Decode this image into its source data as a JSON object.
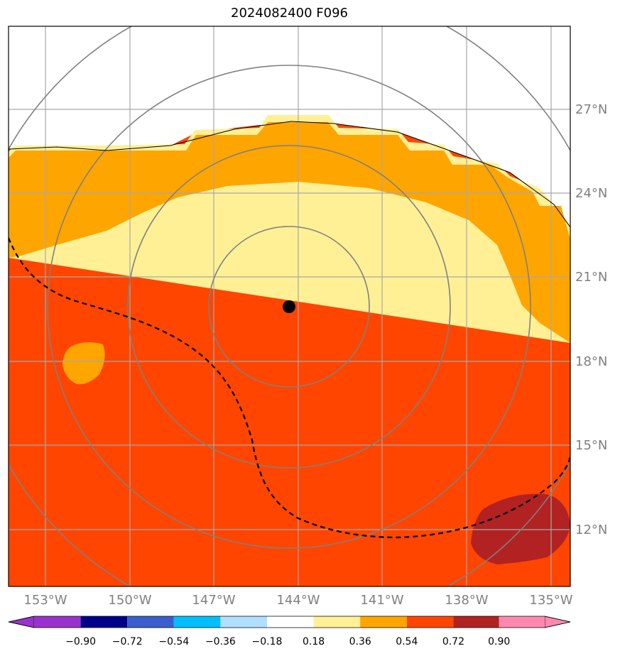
{
  "title": "2024082400 F096",
  "map": {
    "lon_ticks": [
      "153°W",
      "150°W",
      "147°W",
      "144°W",
      "141°W",
      "138°W",
      "135°W"
    ],
    "lat_ticks": [
      "27°N",
      "24°N",
      "21°N",
      "18°N",
      "15°N",
      "12°N"
    ],
    "center_marker": "storm-center-dot",
    "field_colors": {
      "0.18-0.36": "#fff096",
      "0.36-0.54": "#ffa500",
      "0.54-0.72": "#ff4500",
      "0.72-0.90": "#b22222"
    }
  },
  "colorbar": {
    "tick_labels": [
      "−0.90",
      "−0.72",
      "−0.54",
      "−0.36",
      "−0.18",
      "0.18",
      "0.36",
      "0.54",
      "0.72",
      "0.90"
    ],
    "colors": [
      "#9932cc",
      "#00008b",
      "#3a5fcd",
      "#00bfff",
      "#b0e0ff",
      "#ffffff",
      "#fff096",
      "#ffa500",
      "#ff4500",
      "#b22222",
      "#ff88b0"
    ]
  }
}
